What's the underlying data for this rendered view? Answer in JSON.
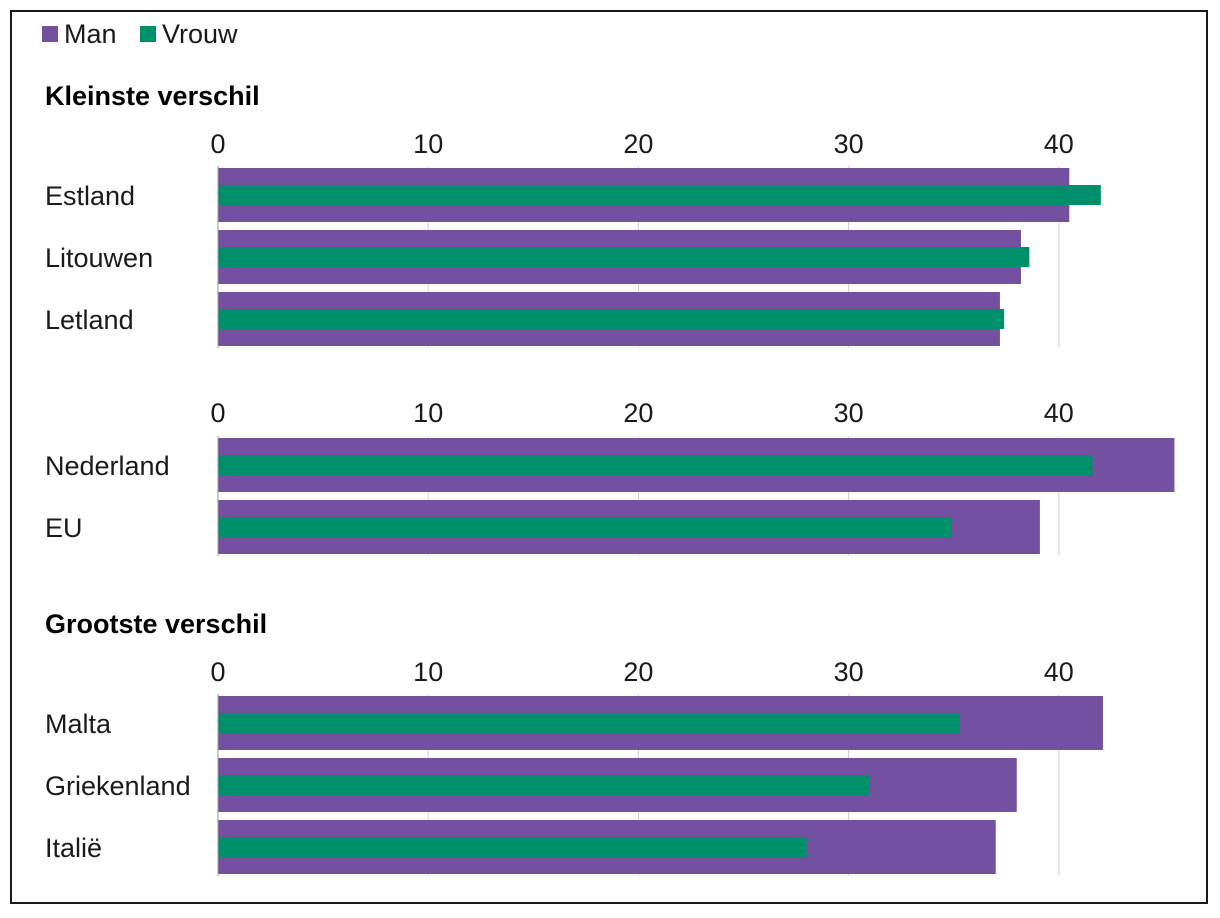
{
  "chart_data": {
    "type": "bar",
    "orientation": "horizontal",
    "legend": {
      "placement": "top-left",
      "entries": [
        "Man",
        "Vrouw"
      ]
    },
    "colors": {
      "Man": "#7451A0",
      "Vrouw": "#008F6B"
    },
    "grid": true,
    "xlim": [
      0,
      45.5
    ],
    "ticks": [
      "0",
      "10",
      "20",
      "30",
      "40"
    ],
    "groups": [
      {
        "title": "Kleinste verschil",
        "categories": [
          "Estland",
          "Litouwen",
          "Letland"
        ],
        "series": [
          {
            "name": "Man",
            "values": [
              40.5,
              38.2,
              37.2
            ]
          },
          {
            "name": "Vrouw",
            "values": [
              42.0,
              38.6,
              37.4
            ]
          }
        ]
      },
      {
        "title": "",
        "categories": [
          "Nederland",
          "EU"
        ],
        "series": [
          {
            "name": "Man",
            "values": [
              45.5,
              39.1
            ]
          },
          {
            "name": "Vrouw",
            "values": [
              41.6,
              34.9
            ]
          }
        ]
      },
      {
        "title": "Grootste verschil",
        "categories": [
          "Malta",
          "Griekenland",
          "Italië"
        ],
        "series": [
          {
            "name": "Man",
            "values": [
              42.1,
              38.0,
              37.0
            ]
          },
          {
            "name": "Vrouw",
            "values": [
              35.3,
              31.0,
              28.0
            ]
          }
        ]
      }
    ]
  }
}
